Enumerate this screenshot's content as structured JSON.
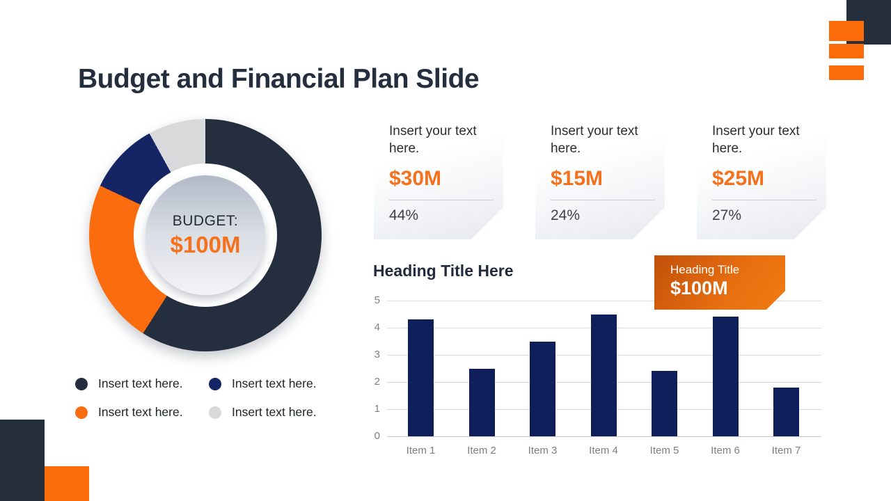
{
  "slide": {
    "title": "Budget and Financial Plan Slide"
  },
  "colors": {
    "charcoal": "#252e3e",
    "navy": "#142465",
    "orange": "#fa6c0e",
    "light_gray": "#d8d9db",
    "bar_navy": "#0f1f5c",
    "accent_text_orange": "#f4711d",
    "heading_dark": "#222b3c",
    "axis_gray": "#7f7f7f"
  },
  "donut": {
    "center_label": "BUDGET:",
    "center_value": "$100M"
  },
  "legend": {
    "items": [
      {
        "label": "Insert text here.",
        "color": "#252e3e"
      },
      {
        "label": "Insert text here.",
        "color": "#142465"
      },
      {
        "label": "Insert text here.",
        "color": "#fa6c0e"
      },
      {
        "label": "Insert text here.",
        "color": "#d8d9db"
      }
    ]
  },
  "cards": [
    {
      "intro": "Insert your text here.",
      "value": "$30M",
      "percent": "44%"
    },
    {
      "intro": "Insert your text here.",
      "value": "$15M",
      "percent": "24%"
    },
    {
      "intro": "Insert your text here.",
      "value": "$25M",
      "percent": "27%"
    }
  ],
  "chart_heading": "Heading Title Here",
  "badge": {
    "title": "Heading Title",
    "value": "$100M"
  },
  "chart_data": [
    {
      "type": "pie",
      "subtype": "donut",
      "title": "BUDGET: $100M",
      "labels": [
        "Insert text here.",
        "Insert text here.",
        "Insert text here.",
        "Insert text here."
      ],
      "slices": [
        {
          "label": "Insert text here.",
          "pct": 59,
          "color": "#252e3e"
        },
        {
          "label": "Insert text here.",
          "pct": 23,
          "color": "#fa6c0e"
        },
        {
          "label": "Insert text here.",
          "pct": 10,
          "color": "#142465"
        },
        {
          "label": "Insert text here.",
          "pct": 8,
          "color": "#d8d9db"
        }
      ],
      "start_angle_deg": 0,
      "legend_position": "bottom"
    },
    {
      "type": "bar",
      "title": "Heading Title Here",
      "categories": [
        "Item 1",
        "Item 2",
        "Item 3",
        "Item 4",
        "Item 5",
        "Item 6",
        "Item 7"
      ],
      "values": [
        4.3,
        2.5,
        3.5,
        4.5,
        2.4,
        4.4,
        1.8
      ],
      "bar_color": "#0f1f5c",
      "xlabel": "",
      "ylabel": "",
      "ylim": [
        0,
        5
      ],
      "ytick_step": 1,
      "grid": true,
      "legend_position": "none"
    }
  ]
}
